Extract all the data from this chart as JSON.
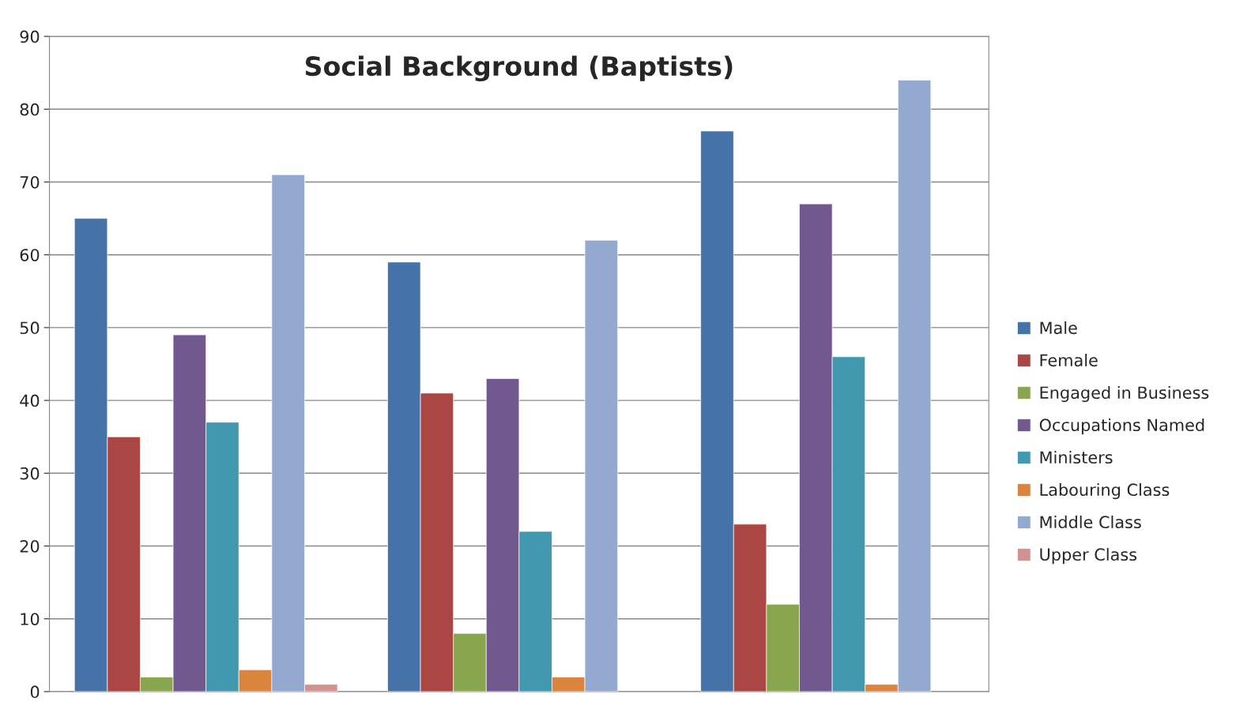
{
  "chart_data": {
    "type": "bar",
    "title": "Social Background (Baptists)",
    "categories": [
      null,
      null,
      null
    ],
    "series": [
      {
        "name": "Male",
        "color": "#4572a7",
        "values": [
          65,
          59,
          77
        ]
      },
      {
        "name": "Female",
        "color": "#aa4643",
        "values": [
          35,
          41,
          23
        ]
      },
      {
        "name": "Engaged in Business",
        "color": "#89a54e",
        "values": [
          2,
          8,
          12
        ]
      },
      {
        "name": "Occupations Named",
        "color": "#71588f",
        "values": [
          49,
          43,
          67
        ]
      },
      {
        "name": "Ministers",
        "color": "#4198af",
        "values": [
          37,
          22,
          46
        ]
      },
      {
        "name": "Labouring Class",
        "color": "#db843d",
        "values": [
          3,
          2,
          1
        ]
      },
      {
        "name": "Middle Class",
        "color": "#93a9cf",
        "values": [
          71,
          62,
          84
        ]
      },
      {
        "name": "Upper Class",
        "color": "#d19392",
        "values": [
          1,
          null,
          null
        ]
      }
    ],
    "ylim": [
      0,
      90
    ],
    "yticks": [
      0,
      10,
      20,
      30,
      40,
      50,
      60,
      70,
      80,
      90
    ],
    "grid": "y",
    "legend": "right"
  }
}
